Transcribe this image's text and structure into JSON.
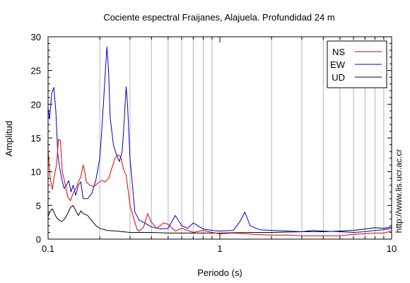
{
  "chart_data": {
    "type": "line",
    "title": "Cociente espectral Fraijanes, Alajuela. Profundidad 24 m",
    "xlabel": "Periodo (s)",
    "ylabel": "Amplitud",
    "x_scale": "log",
    "xlim": [
      0.1,
      10
    ],
    "ylim": [
      0,
      30
    ],
    "x_tick_labels": [
      {
        "value": 0.1,
        "label": "0.1"
      },
      {
        "value": 1,
        "label": "1"
      },
      {
        "value": 10,
        "label": "10"
      }
    ],
    "y_ticks": [
      0,
      5,
      10,
      15,
      20,
      25,
      30
    ],
    "grid": "vertical minor lines",
    "legend_position": "top-right",
    "watermark": "http://www.lis.ucr.ac.cr",
    "series": [
      {
        "name": "NS",
        "color": "#e00000",
        "points": [
          [
            0.1,
            13.2
          ],
          [
            0.103,
            9
          ],
          [
            0.106,
            7.4
          ],
          [
            0.109,
            9.5
          ],
          [
            0.112,
            11
          ],
          [
            0.115,
            14.8
          ],
          [
            0.118,
            14.6
          ],
          [
            0.121,
            10
          ],
          [
            0.125,
            8.5
          ],
          [
            0.13,
            6.3
          ],
          [
            0.135,
            5.7
          ],
          [
            0.14,
            6.8
          ],
          [
            0.145,
            7.5
          ],
          [
            0.15,
            8.5
          ],
          [
            0.155,
            9.2
          ],
          [
            0.16,
            11
          ],
          [
            0.163,
            10.2
          ],
          [
            0.167,
            8.5
          ],
          [
            0.175,
            8
          ],
          [
            0.185,
            7.8
          ],
          [
            0.195,
            8.3
          ],
          [
            0.205,
            8.7
          ],
          [
            0.215,
            8.5
          ],
          [
            0.225,
            9
          ],
          [
            0.235,
            10.5
          ],
          [
            0.245,
            12
          ],
          [
            0.255,
            12.5
          ],
          [
            0.265,
            12.2
          ],
          [
            0.275,
            10.3
          ],
          [
            0.285,
            9.5
          ],
          [
            0.3,
            5
          ],
          [
            0.32,
            2.5
          ],
          [
            0.33,
            1.4
          ],
          [
            0.34,
            1.2
          ],
          [
            0.36,
            1.8
          ],
          [
            0.38,
            3.8
          ],
          [
            0.4,
            2.5
          ],
          [
            0.43,
            1.6
          ],
          [
            0.47,
            2.4
          ],
          [
            0.5,
            2.2
          ],
          [
            0.55,
            1.2
          ],
          [
            0.6,
            1.6
          ],
          [
            0.7,
            1
          ],
          [
            0.8,
            1.3
          ],
          [
            0.9,
            1
          ],
          [
            1.0,
            0.8
          ],
          [
            1.2,
            0.9
          ],
          [
            1.4,
            0.8
          ],
          [
            1.6,
            0.7
          ],
          [
            2,
            0.6
          ],
          [
            2.5,
            0.6
          ],
          [
            3,
            0.5
          ],
          [
            4,
            0.5
          ],
          [
            5,
            0.5
          ],
          [
            6,
            0.7
          ],
          [
            7,
            0.8
          ],
          [
            8,
            0.9
          ],
          [
            9,
            0.9
          ],
          [
            10,
            1.2
          ]
        ]
      },
      {
        "name": "EW",
        "color": "#0000c8",
        "points": [
          [
            0.1,
            19.5
          ],
          [
            0.102,
            17.8
          ],
          [
            0.105,
            21.5
          ],
          [
            0.108,
            22.5
          ],
          [
            0.111,
            19
          ],
          [
            0.114,
            12.5
          ],
          [
            0.117,
            10.5
          ],
          [
            0.12,
            9
          ],
          [
            0.124,
            7.5
          ],
          [
            0.128,
            8
          ],
          [
            0.132,
            8.7
          ],
          [
            0.136,
            7
          ],
          [
            0.14,
            8
          ],
          [
            0.145,
            6.5
          ],
          [
            0.15,
            8
          ],
          [
            0.155,
            8.5
          ],
          [
            0.16,
            6
          ],
          [
            0.17,
            6
          ],
          [
            0.18,
            6.8
          ],
          [
            0.19,
            8.8
          ],
          [
            0.2,
            12
          ],
          [
            0.205,
            16
          ],
          [
            0.21,
            20
          ],
          [
            0.215,
            24.5
          ],
          [
            0.22,
            28.5
          ],
          [
            0.225,
            25
          ],
          [
            0.23,
            18
          ],
          [
            0.24,
            14
          ],
          [
            0.25,
            12.5
          ],
          [
            0.26,
            11.5
          ],
          [
            0.27,
            13
          ],
          [
            0.275,
            16
          ],
          [
            0.28,
            19.5
          ],
          [
            0.285,
            22.6
          ],
          [
            0.29,
            20
          ],
          [
            0.3,
            12
          ],
          [
            0.31,
            8
          ],
          [
            0.32,
            4
          ],
          [
            0.34,
            2.8
          ],
          [
            0.36,
            2.5
          ],
          [
            0.4,
            1.8
          ],
          [
            0.45,
            1.5
          ],
          [
            0.5,
            1.6
          ],
          [
            0.55,
            3.5
          ],
          [
            0.6,
            2
          ],
          [
            0.65,
            1.6
          ],
          [
            0.7,
            2.4
          ],
          [
            0.8,
            1.5
          ],
          [
            0.9,
            1.3
          ],
          [
            1.0,
            1.2
          ],
          [
            1.2,
            1.3
          ],
          [
            1.3,
            2.5
          ],
          [
            1.4,
            4
          ],
          [
            1.5,
            2
          ],
          [
            1.7,
            1.4
          ],
          [
            2,
            1.3
          ],
          [
            2.5,
            1.2
          ],
          [
            3,
            1.1
          ],
          [
            3.5,
            1.3
          ],
          [
            4,
            1.2
          ],
          [
            5,
            1.1
          ],
          [
            6,
            1
          ],
          [
            7,
            1.1
          ],
          [
            8,
            1.3
          ],
          [
            9,
            1.4
          ],
          [
            10,
            1.6
          ]
        ]
      },
      {
        "name": "UD",
        "color": "#000000",
        "points": [
          [
            0.1,
            3.3
          ],
          [
            0.103,
            4.2
          ],
          [
            0.106,
            4.5
          ],
          [
            0.109,
            3.8
          ],
          [
            0.112,
            3.2
          ],
          [
            0.116,
            2.8
          ],
          [
            0.12,
            2.6
          ],
          [
            0.125,
            3
          ],
          [
            0.13,
            3.8
          ],
          [
            0.135,
            4.7
          ],
          [
            0.14,
            5
          ],
          [
            0.145,
            4.2
          ],
          [
            0.15,
            3.5
          ],
          [
            0.155,
            4.2
          ],
          [
            0.16,
            3.8
          ],
          [
            0.17,
            3.5
          ],
          [
            0.18,
            2.7
          ],
          [
            0.19,
            2
          ],
          [
            0.2,
            1.6
          ],
          [
            0.22,
            1.3
          ],
          [
            0.25,
            1.2
          ],
          [
            0.3,
            1.0
          ],
          [
            0.4,
            1.0
          ],
          [
            0.5,
            0.9
          ],
          [
            0.7,
            0.9
          ],
          [
            1,
            0.9
          ],
          [
            1.5,
            1.0
          ],
          [
            2,
            1.0
          ],
          [
            3,
            1.1
          ],
          [
            4,
            1.1
          ],
          [
            5,
            1.2
          ],
          [
            6,
            1.3
          ],
          [
            7,
            1.5
          ],
          [
            8,
            1.7
          ],
          [
            9,
            1.6
          ],
          [
            10,
            1.8
          ]
        ]
      }
    ]
  }
}
